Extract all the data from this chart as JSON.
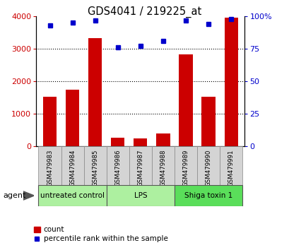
{
  "title": "GDS4041 / 219225_at",
  "samples": [
    "GSM479983",
    "GSM479984",
    "GSM479985",
    "GSM479986",
    "GSM479987",
    "GSM479988",
    "GSM479989",
    "GSM479990",
    "GSM479991"
  ],
  "counts": [
    1530,
    1730,
    3320,
    270,
    250,
    390,
    2820,
    1530,
    3950
  ],
  "percentile_ranks": [
    93,
    95,
    97,
    76,
    77,
    81,
    97,
    94,
    98
  ],
  "bar_color": "#cc0000",
  "dot_color": "#0000cc",
  "left_ylim": [
    0,
    4000
  ],
  "right_ylim": [
    0,
    100
  ],
  "left_yticks": [
    0,
    1000,
    2000,
    3000,
    4000
  ],
  "right_yticks": [
    0,
    25,
    50,
    75,
    100
  ],
  "right_yticklabels": [
    "0",
    "25",
    "50",
    "75",
    "100%"
  ],
  "gridlines_at": [
    1000,
    2000,
    3000
  ],
  "sample_box_color": "#d4d4d4",
  "group_boundaries": [
    {
      "label": "untreated control",
      "start": 0,
      "end": 2,
      "color": "#adf0a0"
    },
    {
      "label": "LPS",
      "start": 3,
      "end": 5,
      "color": "#adf0a0"
    },
    {
      "label": "Shiga toxin 1",
      "start": 6,
      "end": 8,
      "color": "#5ade5a"
    }
  ],
  "agent_label": "agent",
  "legend_count_label": "count",
  "legend_percentile_label": "percentile rank within the sample"
}
